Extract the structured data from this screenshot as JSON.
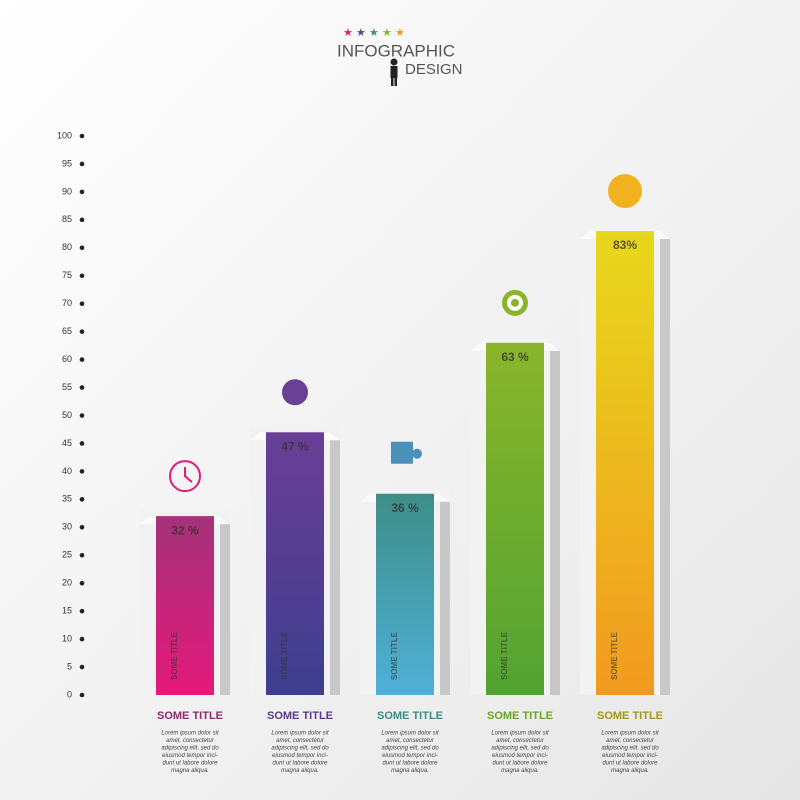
{
  "chart_data": {
    "type": "bar",
    "title": "INFOGRAPHIC",
    "subtitle": "DESIGN",
    "categories": [
      "SOME TITLE",
      "SOME TITLE",
      "SOME TITLE",
      "SOME TITLE",
      "SOME TITLE"
    ],
    "bar_labels": [
      "SOME TITLE",
      "SOME TITLE",
      "SOME TITLE",
      "SOME TITLE",
      "SOME TITLE"
    ],
    "values": [
      32,
      47,
      36,
      63,
      83
    ],
    "value_labels": [
      "32 %",
      "47 %",
      "36 %",
      "63 %",
      "83%"
    ],
    "colors": [
      [
        "#a4327a",
        "#e5197a"
      ],
      [
        "#6a3f96",
        "#3e3e8e"
      ],
      [
        "#3e8e88",
        "#4fb0d8"
      ],
      [
        "#8ab52a",
        "#52a332"
      ],
      [
        "#e7d81c",
        "#f29a1f"
      ]
    ],
    "label_colors": [
      "#8e2a6d",
      "#5a3a8a",
      "#3e8a86",
      "#6aa52a",
      "#a6961a"
    ],
    "descriptions": [
      [
        "Lorem ipsum dolor sit",
        "amet, consectetur",
        "adipiscing elit, sed do",
        "eiusmod tempor inci-",
        "dunt ut labore dolore",
        "magna aliqua."
      ],
      [
        "Lorem ipsum dolor sit",
        "amet, consectetur",
        "adipiscing elit, sed do",
        "eiusmod tempor inci-",
        "dunt ut labore dolore",
        "magna aliqua."
      ],
      [
        "Lorem ipsum dolor sit",
        "amet, consectetur",
        "adipiscing elit, sed do",
        "eiusmod tempor inci-",
        "dunt ut labore dolore",
        "magna aliqua."
      ],
      [
        "Lorem ipsum dolor sit",
        "amet, consectetur",
        "adipiscing elit, sed do",
        "eiusmod tempor inci-",
        "dunt ut labore dolore",
        "magna aliqua."
      ],
      [
        "Lorem ipsum dolor sit",
        "amet, consectetur",
        "adipiscing elit, sed do",
        "eiusmod tempor inci-",
        "dunt ut labore dolore",
        "magna aliqua."
      ]
    ],
    "ylim": [
      0,
      100
    ],
    "yticks": [
      0,
      5,
      10,
      15,
      20,
      25,
      30,
      35,
      40,
      45,
      50,
      55,
      60,
      65,
      70,
      75,
      80,
      85,
      90,
      95,
      100
    ]
  }
}
